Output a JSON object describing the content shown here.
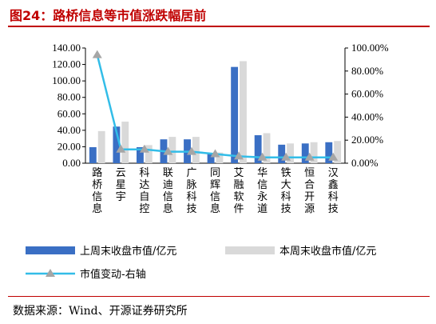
{
  "figure": {
    "title": "图24：路桥信息等市值涨跌幅居前",
    "source": "数据来源：Wind、开源证券研究所"
  },
  "colors": {
    "bar_last_week": "#3a6fc4",
    "bar_this_week": "#d9d9d9",
    "line": "#33bde8",
    "marker": "#a6a6a6",
    "title": "#c00000"
  },
  "chart_data": {
    "type": "bar",
    "categories": [
      "路桥信息",
      "云星宇",
      "科达自控",
      "联迪信息",
      "广脉科技",
      "同辉信息",
      "艾融软件",
      "华信永道",
      "铁大科技",
      "恒合开源",
      "汉鑫科技"
    ],
    "series": [
      {
        "name": "上周末收盘市值/亿元",
        "type": "bar",
        "axis": "left",
        "values": [
          19.5,
          44.5,
          19.5,
          29.0,
          29.0,
          12.5,
          117.0,
          34.0,
          22.5,
          24.0,
          25.5
        ]
      },
      {
        "name": "本周末收盘市值/亿元",
        "type": "bar",
        "axis": "left",
        "values": [
          39.0,
          50.5,
          22.0,
          32.0,
          32.0,
          13.0,
          124.0,
          36.5,
          24.0,
          25.5,
          27.0
        ]
      },
      {
        "name": "市值变动-右轴",
        "type": "line",
        "axis": "right",
        "values": [
          0.94,
          0.12,
          0.12,
          0.1,
          0.1,
          0.08,
          0.06,
          0.05,
          0.05,
          0.05,
          0.05
        ]
      }
    ],
    "y_left": {
      "min": 0,
      "max": 140,
      "step": 20,
      "tick_labels": [
        "0.00",
        "20.00",
        "40.00",
        "60.00",
        "80.00",
        "100.00",
        "120.00",
        "140.00"
      ]
    },
    "y_right": {
      "min": 0,
      "max": 1.0,
      "step": 0.2,
      "tick_labels": [
        "0.00%",
        "20.00%",
        "40.00%",
        "60.00%",
        "80.00%",
        "100.00%"
      ]
    },
    "grid": false,
    "legend_position": "bottom"
  }
}
